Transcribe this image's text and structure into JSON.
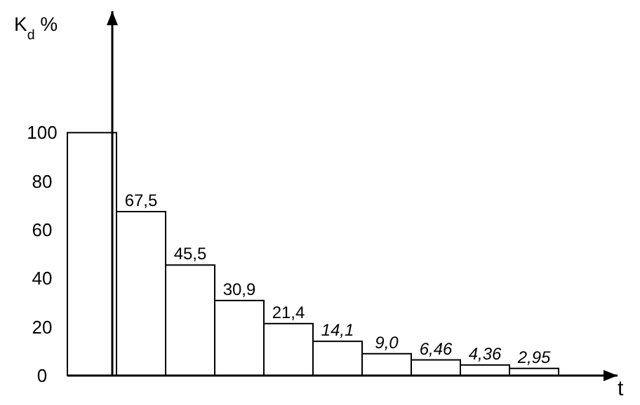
{
  "chart_data": {
    "type": "bar",
    "ylabel": "K$_{d}$ %",
    "xlabel": "t",
    "categories": [
      null,
      null,
      null,
      null,
      null,
      null,
      null,
      null,
      null,
      null
    ],
    "values": [
      100,
      67.5,
      45.5,
      30.9,
      21.4,
      14.1,
      9.0,
      6.46,
      4.36,
      2.95
    ],
    "value_labels": [
      null,
      "67,5",
      "45,5",
      "30,9",
      "21,4",
      "14,1",
      "9,0",
      "6,46",
      "4,36",
      "2,95"
    ],
    "color": "#ffffff",
    "ylim": [
      0,
      150
    ],
    "yticks": [
      0,
      20,
      40,
      60,
      80,
      100
    ],
    "grid": false
  }
}
